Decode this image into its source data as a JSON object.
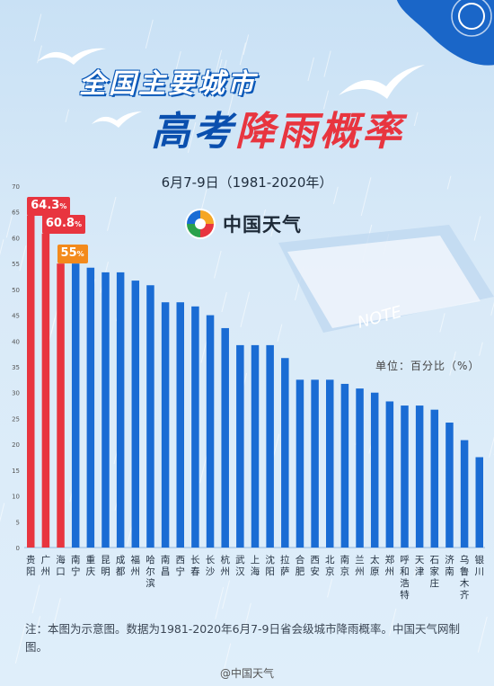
{
  "title": {
    "line1": "全国主要城市",
    "line2_blue": "高考",
    "line2_red": "降雨概率"
  },
  "subtitle": "6月7-9日（1981-2020年）",
  "logo_text": "中国天气",
  "unit_label": "单位：百分比（%）",
  "note": "NOTE",
  "footer": "注：本图为示意图。数据为1981-2020年6月7-9日省会级城市降雨概率。中国天气网制图。",
  "weibo": "@中国天气",
  "colors": {
    "highlight": "#e8353f",
    "normal": "#1a6cd4",
    "callout": "#f38a1c"
  },
  "callouts": [
    "64.3%",
    "60.8%",
    "55%"
  ],
  "chart_data": {
    "type": "bar",
    "categories": [
      "贵阳",
      "广州",
      "海口",
      "南宁",
      "重庆",
      "昆明",
      "成都",
      "福州",
      "哈尔滨",
      "南昌",
      "西宁",
      "长春",
      "长沙",
      "杭州",
      "武汉",
      "上海",
      "沈阳",
      "拉萨",
      "合肥",
      "西安",
      "北京",
      "南京",
      "兰州",
      "太原",
      "郑州",
      "呼和浩特",
      "天津",
      "石家庄",
      "济南",
      "乌鲁木齐",
      "银川"
    ],
    "values": [
      64.3,
      60.8,
      55,
      55,
      54.2,
      53.3,
      53.3,
      51.7,
      50.8,
      47.5,
      47.5,
      46.7,
      45,
      42.5,
      39.2,
      39.2,
      39.2,
      36.7,
      32.5,
      32.5,
      32.5,
      31.7,
      30.8,
      30,
      28.3,
      27.5,
      27.5,
      26.7,
      24.2,
      20.8,
      17.5
    ],
    "highlight_count": 3,
    "ylim": [
      0,
      70
    ],
    "yticks": [
      0,
      5,
      10,
      15,
      20,
      25,
      30,
      35,
      40,
      45,
      50,
      55,
      60,
      65,
      70
    ],
    "grid": false,
    "ylabel": "",
    "xlabel": ""
  }
}
